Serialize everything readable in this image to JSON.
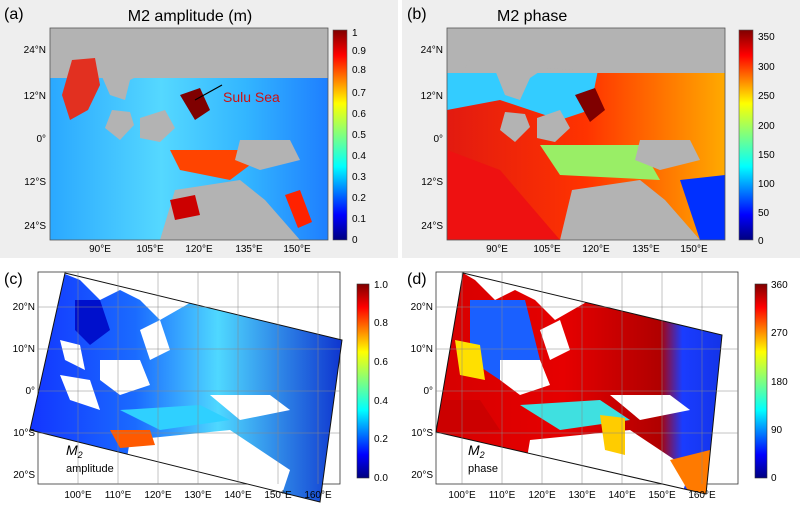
{
  "panels": {
    "a": {
      "tag": "(a)",
      "title": "M2 amplitude (m)",
      "yticks": [
        "24°N",
        "12°N",
        "0°",
        "12°S",
        "24°S"
      ],
      "xticks": [
        "90°E",
        "105°E",
        "120°E",
        "135°E",
        "150°E"
      ],
      "cbar_ticks": [
        "1",
        "0.9",
        "0.8",
        "0.7",
        "0.6",
        "0.5",
        "0.4",
        "0.3",
        "0.2",
        "0.1",
        "0"
      ],
      "annotation": "Sulu Sea"
    },
    "b": {
      "tag": "(b)",
      "title": "M2 phase",
      "yticks": [
        "24°N",
        "12°N",
        "0°",
        "12°S",
        "24°S"
      ],
      "xticks": [
        "90°E",
        "105°E",
        "120°E",
        "135°E",
        "150°E"
      ],
      "cbar_ticks": [
        "350",
        "300",
        "250",
        "200",
        "150",
        "100",
        "50",
        "0"
      ]
    },
    "c": {
      "tag": "(c)",
      "label_main": "M",
      "label_sub": "2",
      "label_var": "amplitude",
      "yticks": [
        "20°N",
        "10°N",
        "0°",
        "10°S",
        "20°S"
      ],
      "xticks": [
        "100°E",
        "110°E",
        "120°E",
        "130°E",
        "140°E",
        "150°E",
        "160°E"
      ],
      "cbar_ticks": [
        "1.0",
        "0.8",
        "0.6",
        "0.4",
        "0.2",
        "0.0"
      ]
    },
    "d": {
      "tag": "(d)",
      "label_main": "M",
      "label_sub": "2",
      "label_var": "phase",
      "yticks": [
        "20°N",
        "10°N",
        "0°",
        "10°S",
        "20°S"
      ],
      "xticks": [
        "100°E",
        "110°E",
        "120°E",
        "130°E",
        "140°E",
        "150°E",
        "160°E"
      ],
      "cbar_ticks": [
        "360",
        "270",
        "180",
        "90",
        "0"
      ]
    }
  },
  "colors": {
    "land_gray": "#b3b3b3",
    "panel_bg_top": "#eeeeee",
    "jet_low": "#00007f",
    "jet_high": "#7f0000",
    "annotation": "#cc1111"
  }
}
